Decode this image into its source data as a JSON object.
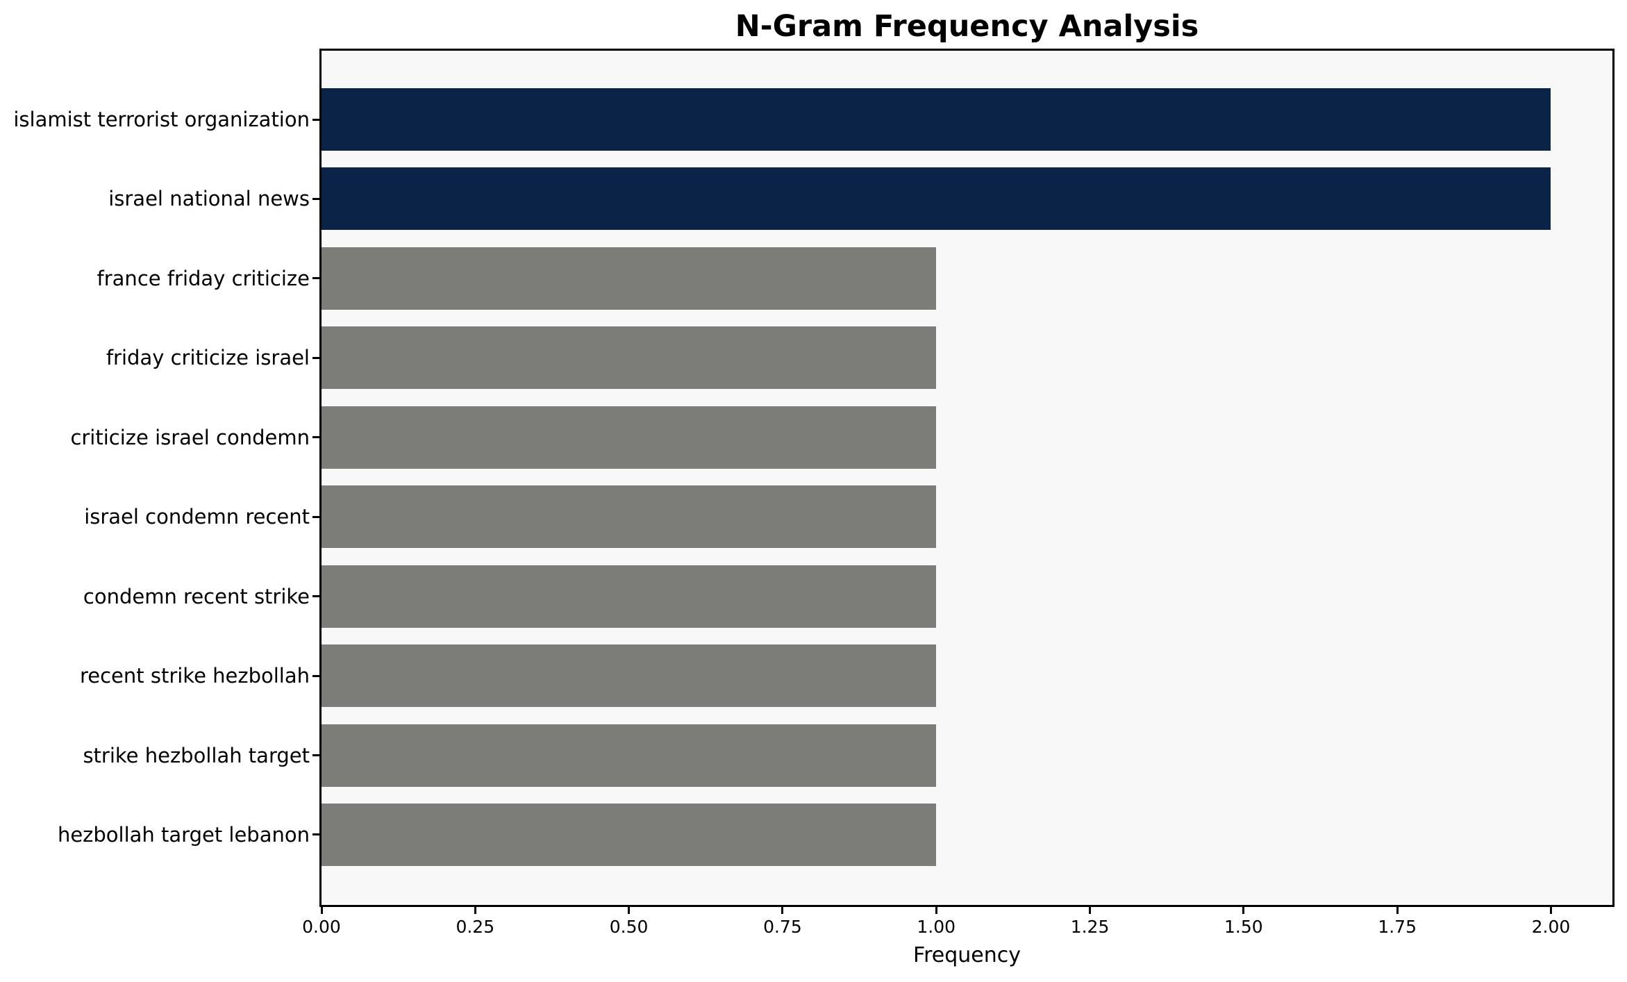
{
  "chart_data": {
    "type": "bar",
    "orientation": "horizontal",
    "title": "N-Gram Frequency Analysis",
    "xlabel": "Frequency",
    "ylabel": "",
    "categories": [
      "islamist terrorist organization",
      "israel national news",
      "france friday criticize",
      "friday criticize israel",
      "criticize israel condemn",
      "israel condemn recent",
      "condemn recent strike",
      "recent strike hezbollah",
      "strike hezbollah target",
      "hezbollah target lebanon"
    ],
    "values": [
      2,
      2,
      1,
      1,
      1,
      1,
      1,
      1,
      1,
      1
    ],
    "bar_colors": [
      "#0b2347",
      "#0b2347",
      "#7c7c79",
      "#7c7c79",
      "#7c7c79",
      "#7c7c79",
      "#7c7c79",
      "#7c7c79",
      "#7c7c79",
      "#7c7c79"
    ],
    "xlim": [
      0,
      2.1
    ],
    "xticks": [
      0,
      0.25,
      0.5,
      0.75,
      1,
      1.25,
      1.5,
      1.75,
      2
    ],
    "xtick_labels": [
      "0.00",
      "0.25",
      "0.50",
      "0.75",
      "1.00",
      "1.25",
      "1.50",
      "1.75",
      "2.00"
    ],
    "grid": false,
    "legend": false,
    "colors": {
      "highlight_bar": "#0b2347",
      "default_bar": "#7c7c79",
      "plot_background": "#f8f8f8",
      "figure_background": "#ffffff",
      "spine": "#000000",
      "text": "#000000"
    }
  }
}
